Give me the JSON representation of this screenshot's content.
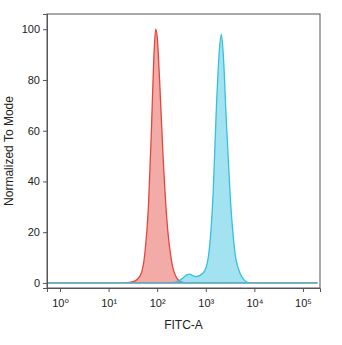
{
  "chart_data": {
    "type": "area",
    "x_label": "FITC-A",
    "y_label": "Normalized To Mode",
    "log": "x",
    "grid": false,
    "xlim": [
      0.54,
      224000
    ],
    "ylim": [
      -2,
      106
    ],
    "xticks": [
      {
        "value": 1,
        "label": "10⁰"
      },
      {
        "value": 10,
        "label": "10¹"
      },
      {
        "value": 100,
        "label": "10²"
      },
      {
        "value": 1000,
        "label": "10³"
      },
      {
        "value": 10000,
        "label": "10⁴"
      },
      {
        "value": 100000,
        "label": "10⁵"
      }
    ],
    "yticks": [
      0,
      20,
      40,
      60,
      80,
      100
    ],
    "series": [
      {
        "color": "#e5453b",
        "x": [
          0.56,
          20,
          32,
          45,
          56,
          66,
          76,
          85,
          93,
          100,
          112,
          132,
          158,
          200,
          251,
          316,
          398,
          200000
        ],
        "values": [
          0,
          0,
          0.5,
          3,
          12,
          30,
          60,
          88,
          100,
          97,
          80,
          50,
          25,
          8,
          2,
          0.3,
          0,
          0
        ]
      },
      {
        "color": "#33c1df",
        "x": [
          0.56,
          200,
          316,
          447,
          631,
          891,
          1122,
          1413,
          1660,
          1905,
          2089,
          2291,
          2630,
          3162,
          3981,
          5012,
          6310,
          7943,
          200000
        ],
        "values": [
          0,
          0,
          1.5,
          3.5,
          2.5,
          4,
          10,
          35,
          70,
          92,
          98,
          90,
          65,
          35,
          12,
          4,
          1,
          0,
          0
        ]
      }
    ]
  }
}
